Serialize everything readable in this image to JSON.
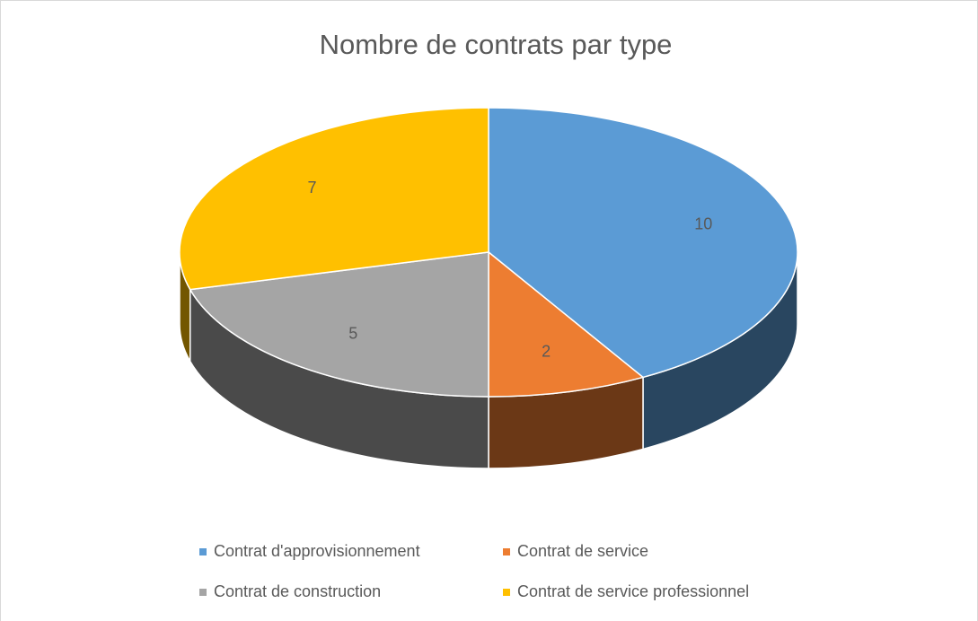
{
  "chart_data": {
    "type": "pie",
    "title": "Nombre de contrats par type",
    "categories": [
      "Contrat d'approvisionnement",
      "Contrat de service",
      "Contrat de construction",
      "Contrat de service professionnel"
    ],
    "values": [
      10,
      2,
      5,
      7
    ],
    "colors": [
      "#5b9bd5",
      "#ed7d31",
      "#a5a5a5",
      "#ffc000"
    ],
    "legend": "bottom"
  }
}
